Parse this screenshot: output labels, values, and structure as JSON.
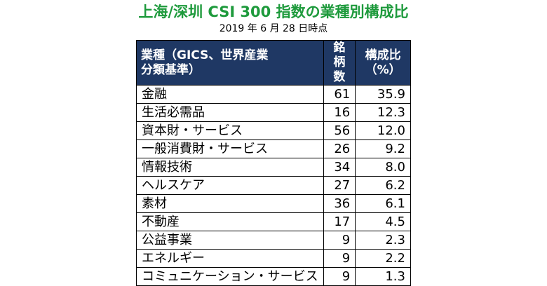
{
  "title": "上海/深圳 CSI 300 指数の業種別構成比",
  "subtitle": "2019 年 6 月 28 日時点",
  "table": {
    "headers": {
      "sector_line1": "業種（GICS、世界産業",
      "sector_line2": "分類基準）",
      "count": "銘柄数",
      "ratio": "構成比（%）"
    },
    "rows": [
      {
        "sector": "金融",
        "count": "61",
        "ratio": "35.9"
      },
      {
        "sector": "生活必需品",
        "count": "16",
        "ratio": "12.3"
      },
      {
        "sector": "資本財・サービス",
        "count": "56",
        "ratio": "12.0"
      },
      {
        "sector": "一般消費財・サービス",
        "count": "26",
        "ratio": "9.2"
      },
      {
        "sector": "情報技術",
        "count": "34",
        "ratio": "8.0"
      },
      {
        "sector": "ヘルスケア",
        "count": "27",
        "ratio": "6.2"
      },
      {
        "sector": "素材",
        "count": "36",
        "ratio": "6.1"
      },
      {
        "sector": "不動産",
        "count": "17",
        "ratio": "4.5"
      },
      {
        "sector": "公益事業",
        "count": "9",
        "ratio": "2.3"
      },
      {
        "sector": "エネルギー",
        "count": "9",
        "ratio": "2.2"
      },
      {
        "sector": "コミュニケーション・サービス",
        "count": "9",
        "ratio": "1.3"
      }
    ]
  },
  "colors": {
    "title": "#1e9a3c",
    "header_bg": "#1f3864",
    "header_text": "#ffffff"
  }
}
